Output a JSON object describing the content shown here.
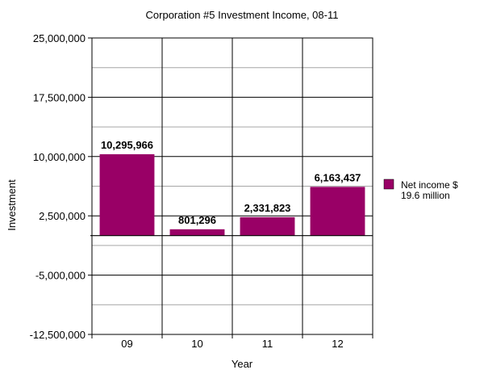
{
  "chart_data": {
    "type": "bar",
    "title": "Corporation #5 Investment Income, 08-11",
    "xlabel": "Year",
    "ylabel": "Investment",
    "categories": [
      "09",
      "10",
      "11",
      "12"
    ],
    "series": [
      {
        "name": "Net income $ 19.6 million",
        "name_lines": [
          "Net income $",
          "19.6 million"
        ],
        "values": [
          10295966,
          801296,
          2331823,
          6163437
        ],
        "labels": [
          "10,295,966",
          "801,296",
          "2,331,823",
          "6,163,437"
        ],
        "color": "#990066"
      }
    ],
    "ylim": [
      -12500000,
      25000000
    ],
    "yticks": [
      25000000,
      17500000,
      10000000,
      2500000,
      -5000000,
      -12500000
    ],
    "ytick_labels": [
      "25,000,000",
      "17,500,000",
      "10,000,000",
      "2,500,000",
      "-5,000,000",
      "-12,500,000"
    ],
    "baseline": 0,
    "grid": true,
    "legend": "right"
  }
}
